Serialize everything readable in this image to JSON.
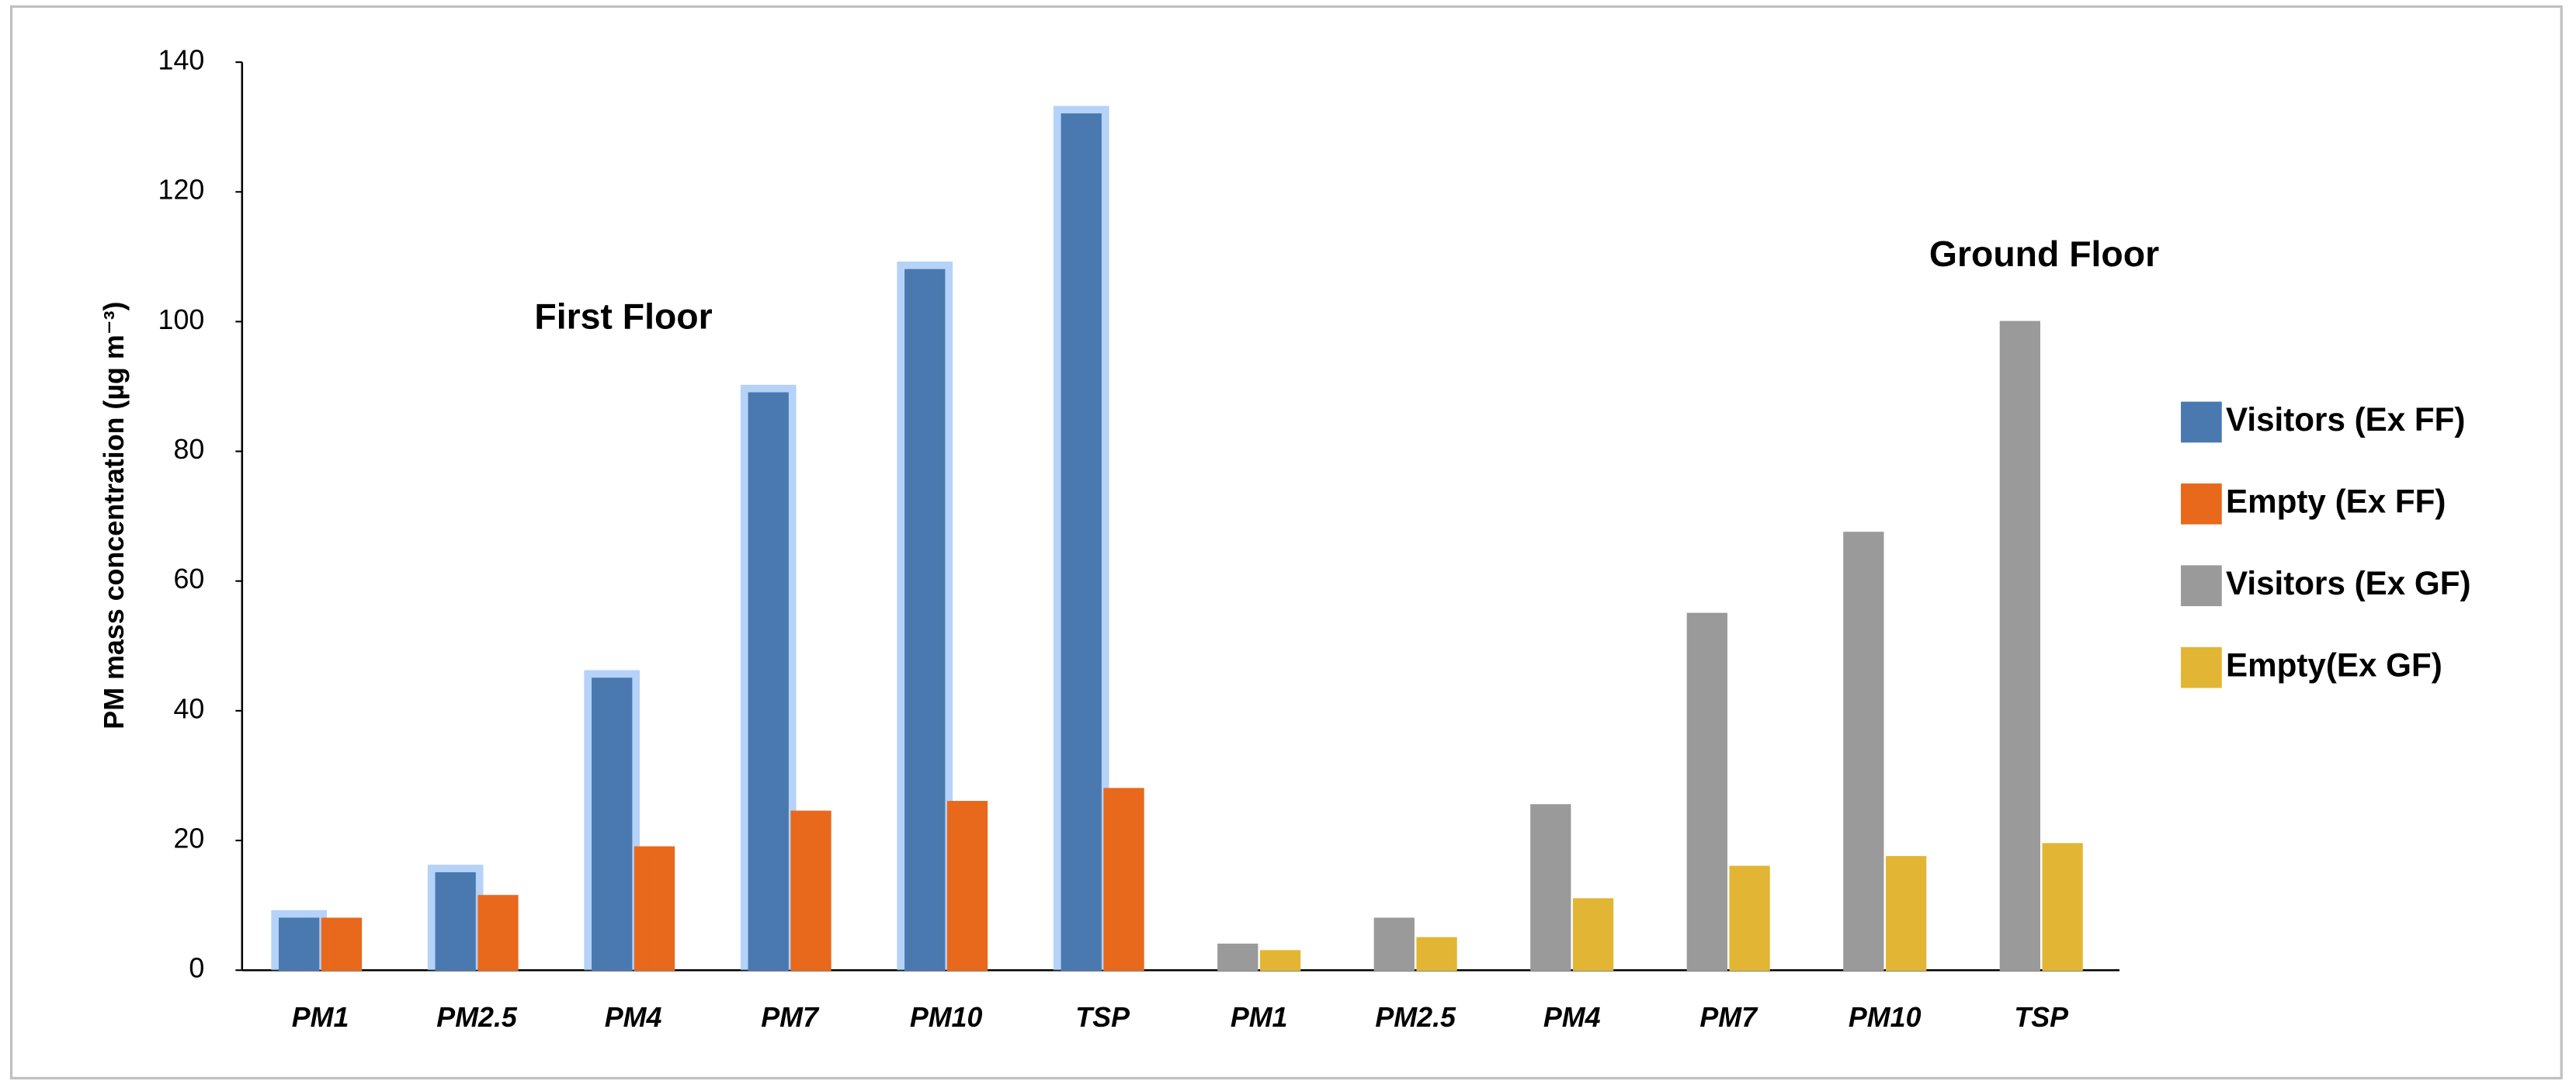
{
  "chart_data": {
    "type": "bar",
    "y_label": "PM mass concentration (µg m⁻³)",
    "annotations": [
      "First Floor",
      "Ground Floor"
    ],
    "categories": [
      "PM1",
      "PM2.5",
      "PM4",
      "PM7",
      "PM10",
      "TSP",
      "PM1",
      "PM2.5",
      "PM4",
      "PM7",
      "PM10",
      "TSP"
    ],
    "series": [
      {
        "name": "Visitors (Ex FF)",
        "color": "#4a79b0",
        "values": [
          8,
          15,
          45,
          89,
          108,
          132,
          null,
          null,
          null,
          null,
          null,
          null
        ]
      },
      {
        "name": "Empty (Ex FF)",
        "color": "#e8691c",
        "values": [
          8,
          11.5,
          19,
          24.5,
          26,
          28,
          null,
          null,
          null,
          null,
          null,
          null
        ]
      },
      {
        "name": "Visitors (Ex GF)",
        "color": "#9a9a9a",
        "values": [
          null,
          null,
          null,
          null,
          null,
          null,
          4,
          8,
          25.5,
          55,
          67.5,
          100
        ]
      },
      {
        "name": "Empty(Ex GF)",
        "color": "#e2b634",
        "values": [
          null,
          null,
          null,
          null,
          null,
          null,
          3,
          5,
          11,
          16,
          17.5,
          19.5
        ]
      }
    ],
    "ylim": [
      0,
      140
    ],
    "yticks": [
      0,
      20,
      40,
      60,
      80,
      100,
      120,
      140
    ],
    "grid": false,
    "legend": "right"
  }
}
